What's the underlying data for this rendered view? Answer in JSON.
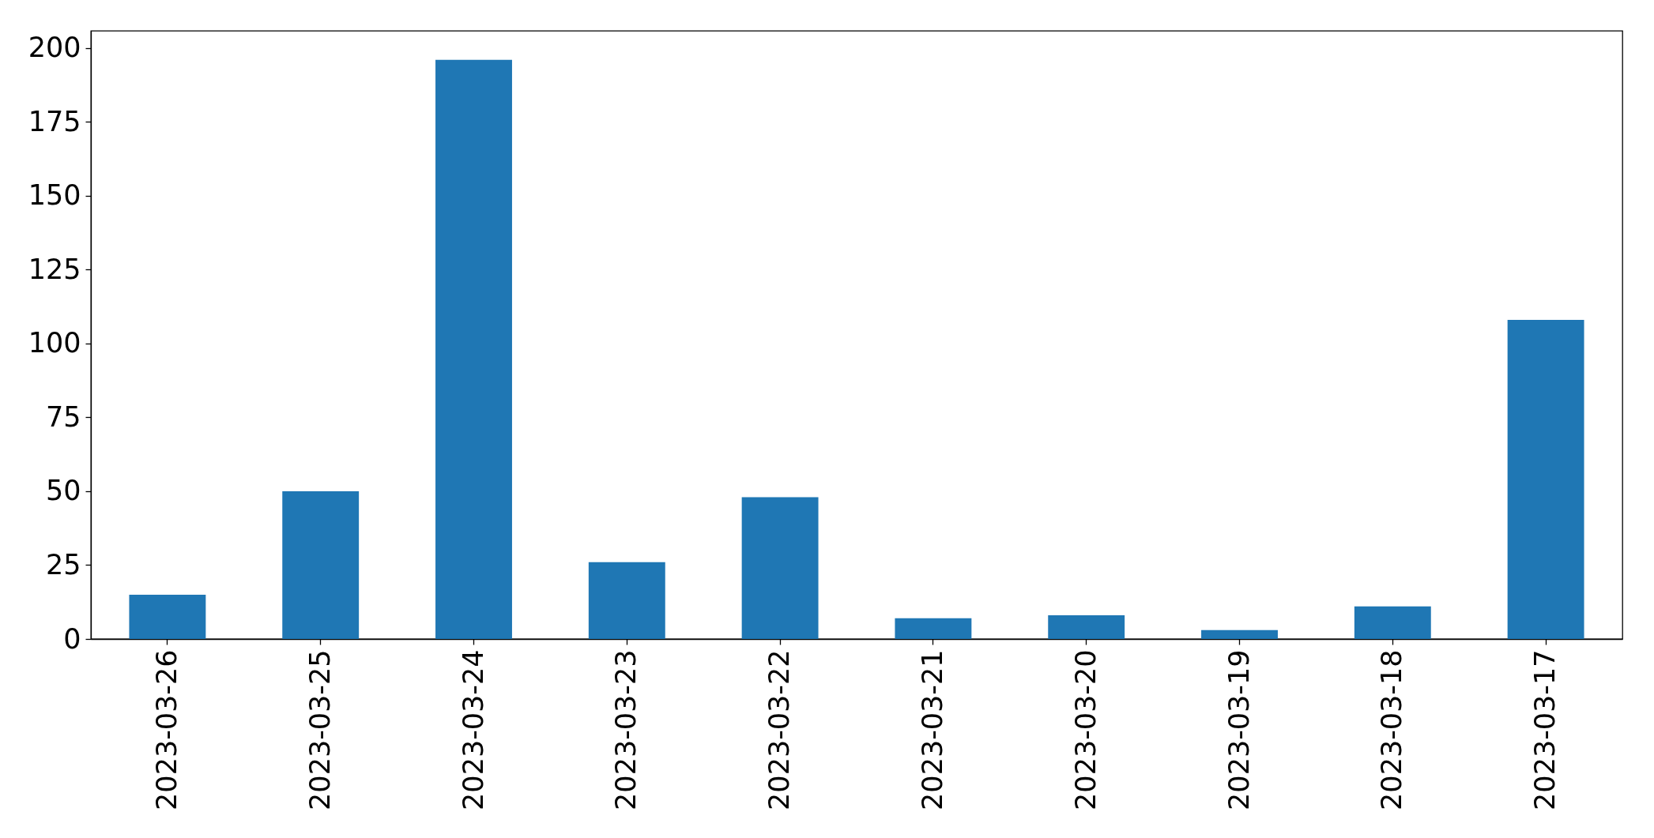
{
  "chart_data": {
    "type": "bar",
    "categories": [
      "2023-03-26",
      "2023-03-25",
      "2023-03-24",
      "2023-03-23",
      "2023-03-22",
      "2023-03-21",
      "2023-03-20",
      "2023-03-19",
      "2023-03-18",
      "2023-03-17"
    ],
    "values": [
      15,
      50,
      196,
      26,
      48,
      7,
      8,
      3,
      11,
      108
    ],
    "color": "#1f77b4",
    "ylim": [
      0,
      205.8
    ],
    "yticks": [
      0,
      25,
      50,
      75,
      100,
      125,
      150,
      175,
      200
    ]
  }
}
